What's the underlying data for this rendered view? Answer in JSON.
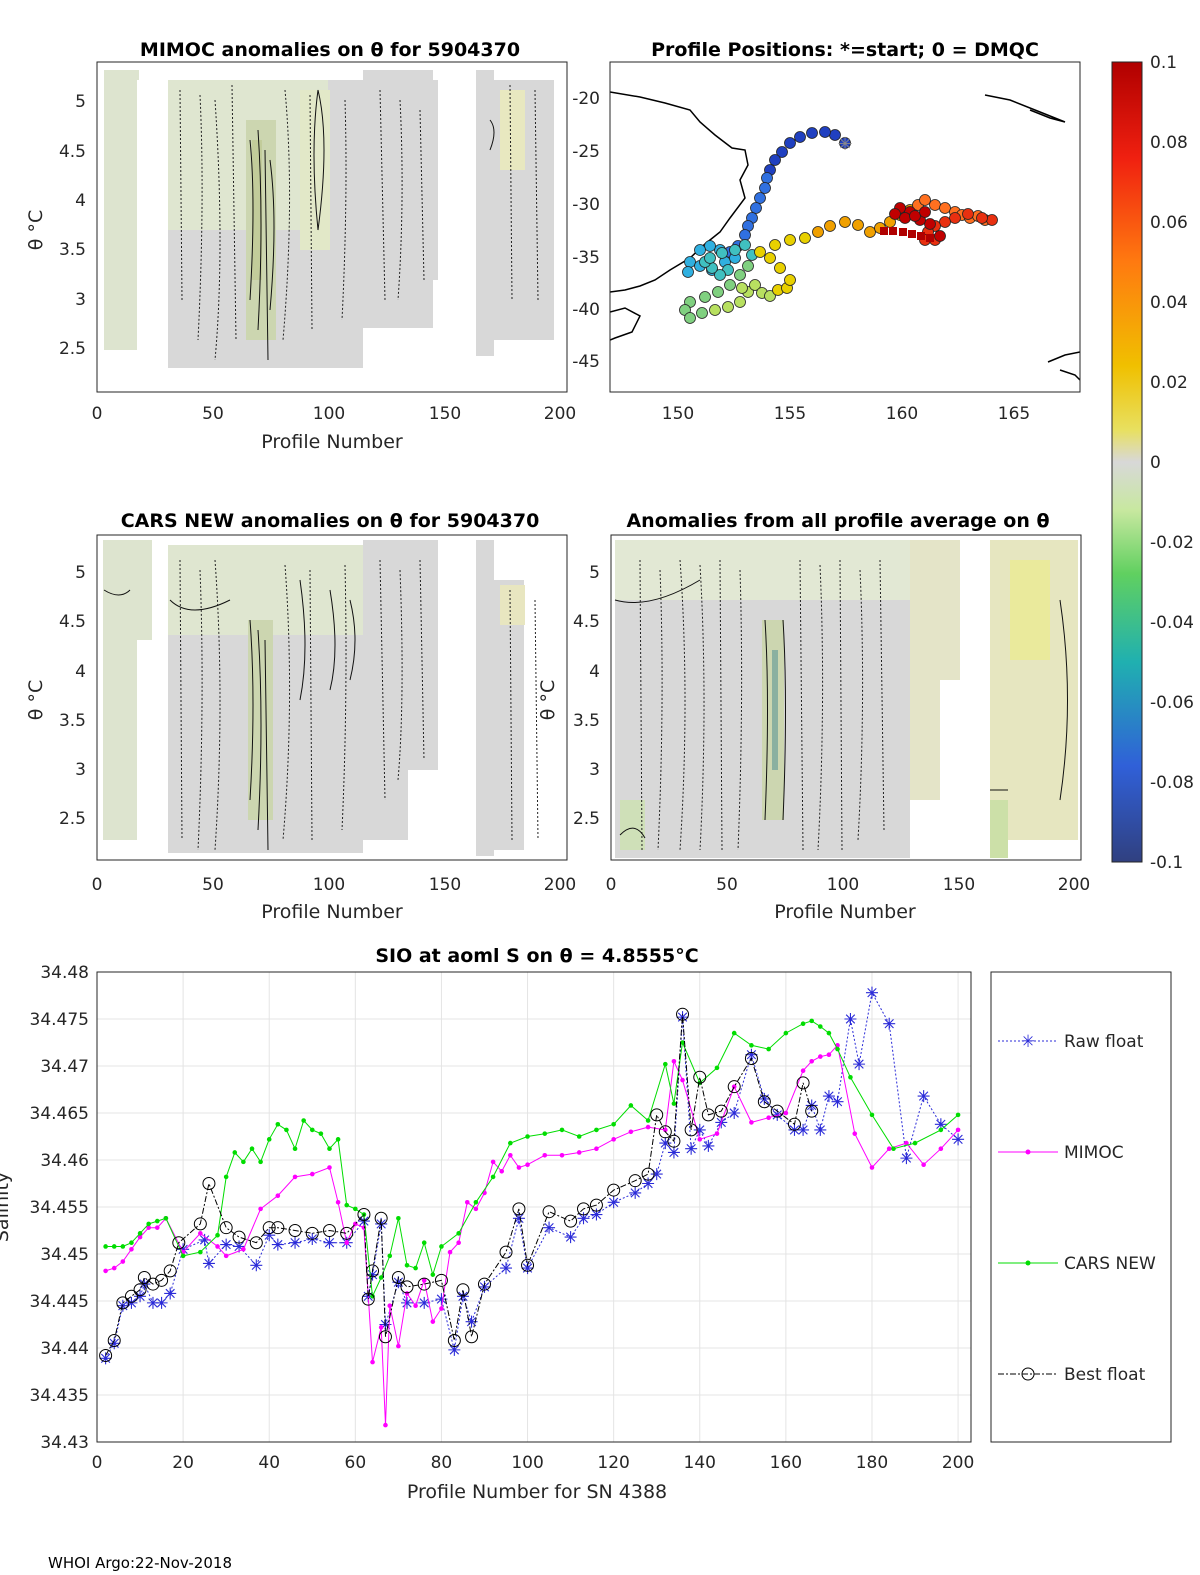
{
  "footer": "WHOI Argo:22-Nov-2018",
  "panels": {
    "mimoc": {
      "title": "MIMOC anomalies on θ  for 5904370",
      "xlabel": "Profile Number",
      "ylabel": "θ °C",
      "xticks": [
        "0",
        "50",
        "100",
        "150",
        "200"
      ],
      "yticks": [
        "5",
        "4.5",
        "4",
        "3.5",
        "3",
        "2.5"
      ],
      "xlim": [
        -1,
        203
      ],
      "ylim": [
        2.12,
        5.35
      ]
    },
    "positions": {
      "title": "Profile Positions: *=start; 0 = DMQC",
      "xticks": [
        "150",
        "155",
        "160",
        "165"
      ],
      "yticks": [
        "-20",
        "-25",
        "-30",
        "-35",
        "-40",
        "-45"
      ],
      "xlim": [
        147,
        168
      ],
      "ylim": [
        -48,
        -17
      ]
    },
    "cars": {
      "title": "CARS NEW anomalies on θ for 5904370",
      "xlabel": "Profile Number",
      "ylabel": "θ °C",
      "xticks": [
        "0",
        "50",
        "100",
        "150",
        "200"
      ],
      "yticks": [
        "5",
        "4.5",
        "4",
        "3.5",
        "3",
        "2.5"
      ],
      "xlim": [
        -1,
        203
      ],
      "ylim": [
        2.08,
        5.35
      ]
    },
    "avg": {
      "title": "Anomalies from all profile average on θ",
      "xlabel": "Profile Number",
      "ylabel": "θ °C",
      "xticks": [
        "0",
        "50",
        "100",
        "150",
        "200"
      ],
      "yticks": [
        "5",
        "4.5",
        "4",
        "3.5",
        "3",
        "2.5"
      ],
      "xlim": [
        -1,
        203
      ],
      "ylim": [
        2.08,
        5.35
      ]
    }
  },
  "colorbar": {
    "ticks": [
      "0.1",
      "0.08",
      "0.06",
      "0.04",
      "0.02",
      "0",
      "-0.02",
      "-0.04",
      "-0.06",
      "-0.08",
      "-0.1"
    ],
    "range": [
      -0.1,
      0.1
    ]
  },
  "chart_data": {
    "type": "line",
    "title": "SIO at aoml S on θ = 4.8555°C",
    "xlabel": "Profile Number for SN 4388",
    "ylabel": "Salinity",
    "xlim": [
      0,
      203
    ],
    "ylim": [
      34.43,
      34.48
    ],
    "grid": true,
    "xticks": [
      "0",
      "20",
      "40",
      "60",
      "80",
      "100",
      "120",
      "140",
      "160",
      "180",
      "200"
    ],
    "yticks": [
      "34.48",
      "34.475",
      "34.47",
      "34.465",
      "34.46",
      "34.455",
      "34.45",
      "34.445",
      "34.44",
      "34.435",
      "34.43"
    ],
    "legend": [
      "Raw float",
      "MIMOC",
      "CARS NEW",
      "Best float"
    ],
    "series": [
      {
        "name": "Raw float",
        "color": "#2b2bd8",
        "x": [
          2,
          4,
          6,
          8,
          10,
          11,
          13,
          15,
          17,
          20,
          25,
          26,
          30,
          33,
          37,
          40,
          42,
          46,
          50,
          54,
          58,
          62,
          63,
          64,
          66,
          67,
          70,
          72,
          76,
          80,
          83,
          85,
          87,
          90,
          95,
          98,
          100,
          105,
          110,
          113,
          116,
          120,
          125,
          128,
          130,
          132,
          134,
          136,
          138,
          140,
          142,
          145,
          148,
          152,
          155,
          158,
          162,
          164,
          166,
          168,
          170,
          172,
          175,
          177,
          180,
          184,
          188,
          192,
          196,
          200
        ],
        "y": [
          34.4389,
          34.4405,
          34.4445,
          34.4448,
          34.4455,
          34.4468,
          34.4448,
          34.4448,
          34.4458,
          34.4505,
          34.4515,
          34.449,
          34.451,
          34.4508,
          34.4488,
          34.452,
          34.451,
          34.4512,
          34.4516,
          34.4512,
          34.4512,
          34.4535,
          34.4455,
          34.4478,
          34.4532,
          34.4425,
          34.447,
          34.4448,
          34.4448,
          34.4452,
          34.4398,
          34.4455,
          34.4428,
          34.4465,
          34.4485,
          34.4538,
          34.4485,
          34.4528,
          34.4518,
          34.4538,
          34.4542,
          34.4555,
          34.4565,
          34.4575,
          34.4585,
          34.4618,
          34.4608,
          34.4752,
          34.4612,
          34.4632,
          34.4615,
          34.464,
          34.465,
          34.4712,
          34.4665,
          34.4648,
          34.4632,
          34.4632,
          34.4658,
          34.4632,
          34.4668,
          34.4662,
          34.475,
          34.4702,
          34.4778,
          34.4745,
          34.4602,
          34.4668,
          34.4638,
          34.4622
        ]
      },
      {
        "name": "MIMOC",
        "color": "#ff00ff",
        "x": [
          2,
          4,
          6,
          8,
          10,
          12,
          14,
          16,
          20,
          24,
          28,
          30,
          34,
          38,
          42,
          46,
          50,
          54,
          56,
          58,
          60,
          62,
          64,
          66,
          67,
          68,
          70,
          72,
          74,
          76,
          78,
          80,
          82,
          84,
          86,
          88,
          90,
          92,
          94,
          96,
          98,
          100,
          104,
          108,
          112,
          116,
          120,
          124,
          128,
          132,
          134,
          136,
          140,
          144,
          148,
          152,
          156,
          160,
          164,
          166,
          168,
          170,
          172,
          176,
          180,
          184,
          188,
          192,
          196,
          200
        ],
        "y": [
          34.4482,
          34.4485,
          34.4492,
          34.4505,
          34.4518,
          34.4528,
          34.4528,
          34.4538,
          34.4502,
          34.4522,
          34.4508,
          34.4498,
          34.4505,
          34.4548,
          34.4562,
          34.4582,
          34.4585,
          34.4592,
          34.4555,
          34.4512,
          34.4532,
          34.4528,
          34.4385,
          34.4422,
          34.4318,
          34.4445,
          34.4402,
          34.4458,
          34.4445,
          34.4472,
          34.4428,
          34.4442,
          34.4502,
          34.4512,
          34.4555,
          34.4548,
          34.4565,
          34.4598,
          34.4588,
          34.4605,
          34.4592,
          34.4595,
          34.4605,
          34.4605,
          34.4608,
          34.4612,
          34.4622,
          34.463,
          34.4635,
          34.4632,
          34.4705,
          34.4685,
          34.4622,
          34.4628,
          34.4678,
          34.464,
          34.4645,
          34.465,
          34.4695,
          34.4705,
          34.471,
          34.4712,
          34.4722,
          34.4628,
          34.4592,
          34.4612,
          34.4618,
          34.4595,
          34.4612,
          34.4632
        ]
      },
      {
        "name": "CARS NEW",
        "color": "#00dd00",
        "x": [
          2,
          4,
          6,
          8,
          10,
          12,
          14,
          16,
          20,
          24,
          28,
          30,
          32,
          34,
          36,
          38,
          40,
          42,
          44,
          46,
          48,
          50,
          52,
          54,
          56,
          58,
          60,
          62,
          64,
          66,
          68,
          70,
          72,
          74,
          76,
          78,
          80,
          84,
          88,
          92,
          96,
          100,
          104,
          108,
          112,
          116,
          120,
          124,
          128,
          132,
          134,
          136,
          140,
          144,
          148,
          152,
          156,
          160,
          164,
          166,
          168,
          170,
          172,
          175,
          180,
          185,
          190,
          196,
          200
        ],
        "y": [
          34.4508,
          34.4508,
          34.4508,
          34.4512,
          34.4522,
          34.4532,
          34.4535,
          34.4538,
          34.4498,
          34.4502,
          34.452,
          34.4582,
          34.4608,
          34.4598,
          34.4612,
          34.4598,
          34.4622,
          34.4638,
          34.4632,
          34.4612,
          34.4642,
          34.4632,
          34.4628,
          34.4612,
          34.4622,
          34.4552,
          34.4548,
          34.4542,
          34.4455,
          34.4475,
          34.4498,
          34.4538,
          34.4488,
          34.4485,
          34.4512,
          34.4478,
          34.4508,
          34.4522,
          34.4555,
          34.4582,
          34.4618,
          34.4625,
          34.4628,
          34.4632,
          34.4625,
          34.4632,
          34.4638,
          34.4658,
          34.4642,
          34.4702,
          34.466,
          34.4725,
          34.4682,
          34.4698,
          34.4735,
          34.4722,
          34.4718,
          34.4735,
          34.4745,
          34.4748,
          34.4742,
          34.4735,
          34.4718,
          34.4688,
          34.4648,
          34.4612,
          34.4618,
          34.4632,
          34.4648
        ]
      },
      {
        "name": "Best float",
        "color": "#000000",
        "x": [
          2,
          4,
          6,
          8,
          10,
          11,
          13,
          15,
          17,
          19,
          24,
          26,
          30,
          33,
          37,
          40,
          42,
          46,
          50,
          54,
          58,
          62,
          63,
          64,
          66,
          67,
          70,
          72,
          76,
          80,
          83,
          85,
          87,
          90,
          95,
          98,
          100,
          105,
          110,
          113,
          116,
          120,
          125,
          128,
          130,
          132,
          134,
          136,
          138,
          140,
          142,
          145,
          148,
          152,
          155,
          158,
          162,
          164,
          166
        ],
        "y": [
          34.4392,
          34.4408,
          34.4448,
          34.4455,
          34.4462,
          34.4475,
          34.4468,
          34.4472,
          34.4482,
          34.4512,
          34.4532,
          34.4575,
          34.4528,
          34.4518,
          34.4512,
          34.4528,
          34.4528,
          34.4525,
          34.4522,
          34.4525,
          34.4522,
          34.4542,
          34.4452,
          34.4482,
          34.4538,
          34.4412,
          34.4475,
          34.4465,
          34.4468,
          34.4472,
          34.4408,
          34.4462,
          34.4412,
          34.4468,
          34.4502,
          34.4548,
          34.4488,
          34.4545,
          34.4535,
          34.4548,
          34.4552,
          34.4568,
          34.4578,
          34.4585,
          34.4648,
          34.463,
          34.462,
          34.4755,
          34.4632,
          34.4688,
          34.4648,
          34.4652,
          34.4678,
          34.4708,
          34.4662,
          34.4652,
          34.4638,
          34.4682,
          34.4652
        ]
      }
    ]
  }
}
